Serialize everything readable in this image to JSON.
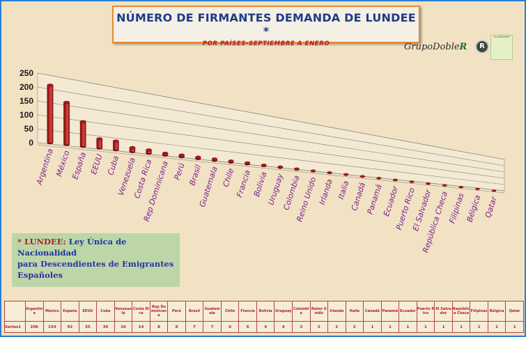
{
  "title": "NÚMERO DE FIRMANTES DEMANDA DE LUNDEE *",
  "subtitle": "POR PAÍSES-SEPTIEMBRE A ENERO",
  "logo": {
    "text_grupo": "GrupoDoble",
    "text_r": "R",
    "mark": "R",
    "badge": "GrupoDobleR"
  },
  "note": {
    "label": "* LUNDEE:",
    "line1": "Ley Única de Nacionalidad",
    "line2": "para Descendientes de Emigrantes",
    "line3": "Españoles"
  },
  "colors": {
    "bar": "#b51f1f",
    "bar_dark": "#7a1010",
    "title": "#203b86",
    "subtitle": "#b01e28",
    "background": "#f1e2c3",
    "frame": "#2a7fd0",
    "note_bg": "#bcd6a8",
    "category_label": "#7c1f8f"
  },
  "chart_data": {
    "type": "bar",
    "title": "NÚMERO DE FIRMANTES DEMANDA DE LUNDEE *",
    "subtitle": "POR PAÍSES-SEPTIEMBRE A ENERO",
    "categories": [
      "Argentina",
      "México",
      "España",
      "EEUU",
      "Cuba",
      "Venezuela",
      "Costa Rica",
      "Rep Dominicana",
      "Perú",
      "Brasil",
      "Guatemala",
      "Chile",
      "Francia",
      "Bolivia",
      "Uruguay",
      "Colombia",
      "Reino Unido",
      "Irlanda",
      "Italia",
      "Canadá",
      "Panamá",
      "Ecuador",
      "Puerto Rico",
      "El Salvador",
      "República Checa",
      "Filipinas",
      "Bélgica",
      "Qatar"
    ],
    "table_headers": [
      "Argentina",
      "México",
      "España",
      "EEUU",
      "Cuba",
      "Venezuela",
      "Costa Rica",
      "Rep Dominicana",
      "Perú",
      "Brasil",
      "Guatemala",
      "Chile",
      "Francia",
      "Bolivia",
      "Uruguay",
      "Colombia",
      "Reino Unido",
      "Irlanda",
      "Italia",
      "Canadá",
      "Panamá",
      "Ecuador",
      "Puerto Rico",
      "El Salvador",
      "República Checa",
      "Filipinas",
      "Bélgica",
      "Qatar"
    ],
    "series": [
      {
        "name": "Series1",
        "values": [
          206,
          154,
          92,
          35,
          34,
          16,
          14,
          8,
          8,
          7,
          7,
          6,
          6,
          4,
          4,
          3,
          2,
          2,
          2,
          1,
          1,
          1,
          1,
          1,
          1,
          1,
          1,
          1
        ]
      }
    ],
    "y_ticks": [
      0,
      50,
      100,
      150,
      200,
      250
    ],
    "ylim": [
      0,
      250
    ],
    "legend_key": "Series1",
    "grid": true
  }
}
